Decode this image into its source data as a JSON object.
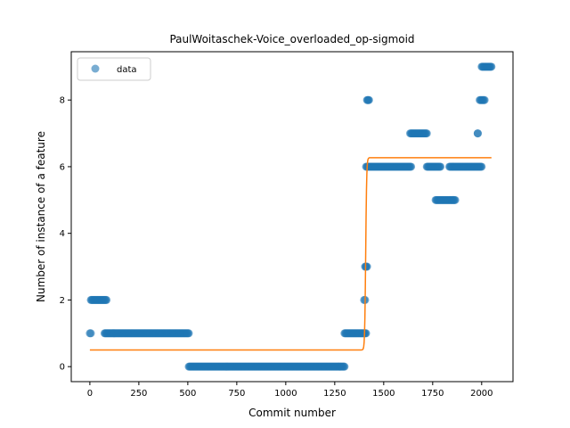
{
  "chart_data": {
    "type": "scatter",
    "title": "PaulWoitaschek-Voice_overloaded_op-sigmoid",
    "xlabel": "Commit number",
    "ylabel": "Number of instance of a feature",
    "xlim": [
      -95,
      2160
    ],
    "ylim": [
      -0.45,
      9.45
    ],
    "xticks": [
      0,
      250,
      500,
      750,
      1000,
      1250,
      1500,
      1750,
      2000
    ],
    "yticks": [
      0,
      2,
      4,
      6,
      8
    ],
    "grid": false,
    "legend": {
      "placement": "top-left",
      "entries": [
        "data"
      ]
    },
    "colors": {
      "points": "#1f77b4",
      "fit": "#ff7f0e"
    },
    "series": [
      {
        "name": "data",
        "kind": "points",
        "segments": [
          {
            "x_start": 0,
            "x_end": 5,
            "y": 1
          },
          {
            "x_start": 5,
            "x_end": 85,
            "y": 2
          },
          {
            "x_start": 75,
            "x_end": 505,
            "y": 1
          },
          {
            "x_start": 505,
            "x_end": 1300,
            "y": 0
          },
          {
            "x_start": 1300,
            "x_end": 1410,
            "y": 1
          },
          {
            "x_start": 1400,
            "x_end": 1405,
            "y": 2
          },
          {
            "x_start": 1405,
            "x_end": 1415,
            "y": 3
          },
          {
            "x_start": 1410,
            "x_end": 1640,
            "y": 6
          },
          {
            "x_start": 1415,
            "x_end": 1425,
            "y": 8
          },
          {
            "x_start": 1635,
            "x_end": 1720,
            "y": 7
          },
          {
            "x_start": 1720,
            "x_end": 1790,
            "y": 6
          },
          {
            "x_start": 1765,
            "x_end": 1865,
            "y": 5
          },
          {
            "x_start": 1835,
            "x_end": 2000,
            "y": 6
          },
          {
            "x_start": 1980,
            "x_end": 1980,
            "y": 7
          },
          {
            "x_start": 1990,
            "x_end": 2015,
            "y": 8
          },
          {
            "x_start": 2000,
            "x_end": 2050,
            "y": 9
          }
        ]
      },
      {
        "name": "",
        "kind": "sigmoid",
        "low": 0.5,
        "high": 6.27,
        "midpoint": 1408,
        "steepness": 0.4,
        "x_range": [
          0,
          2050
        ]
      }
    ]
  }
}
